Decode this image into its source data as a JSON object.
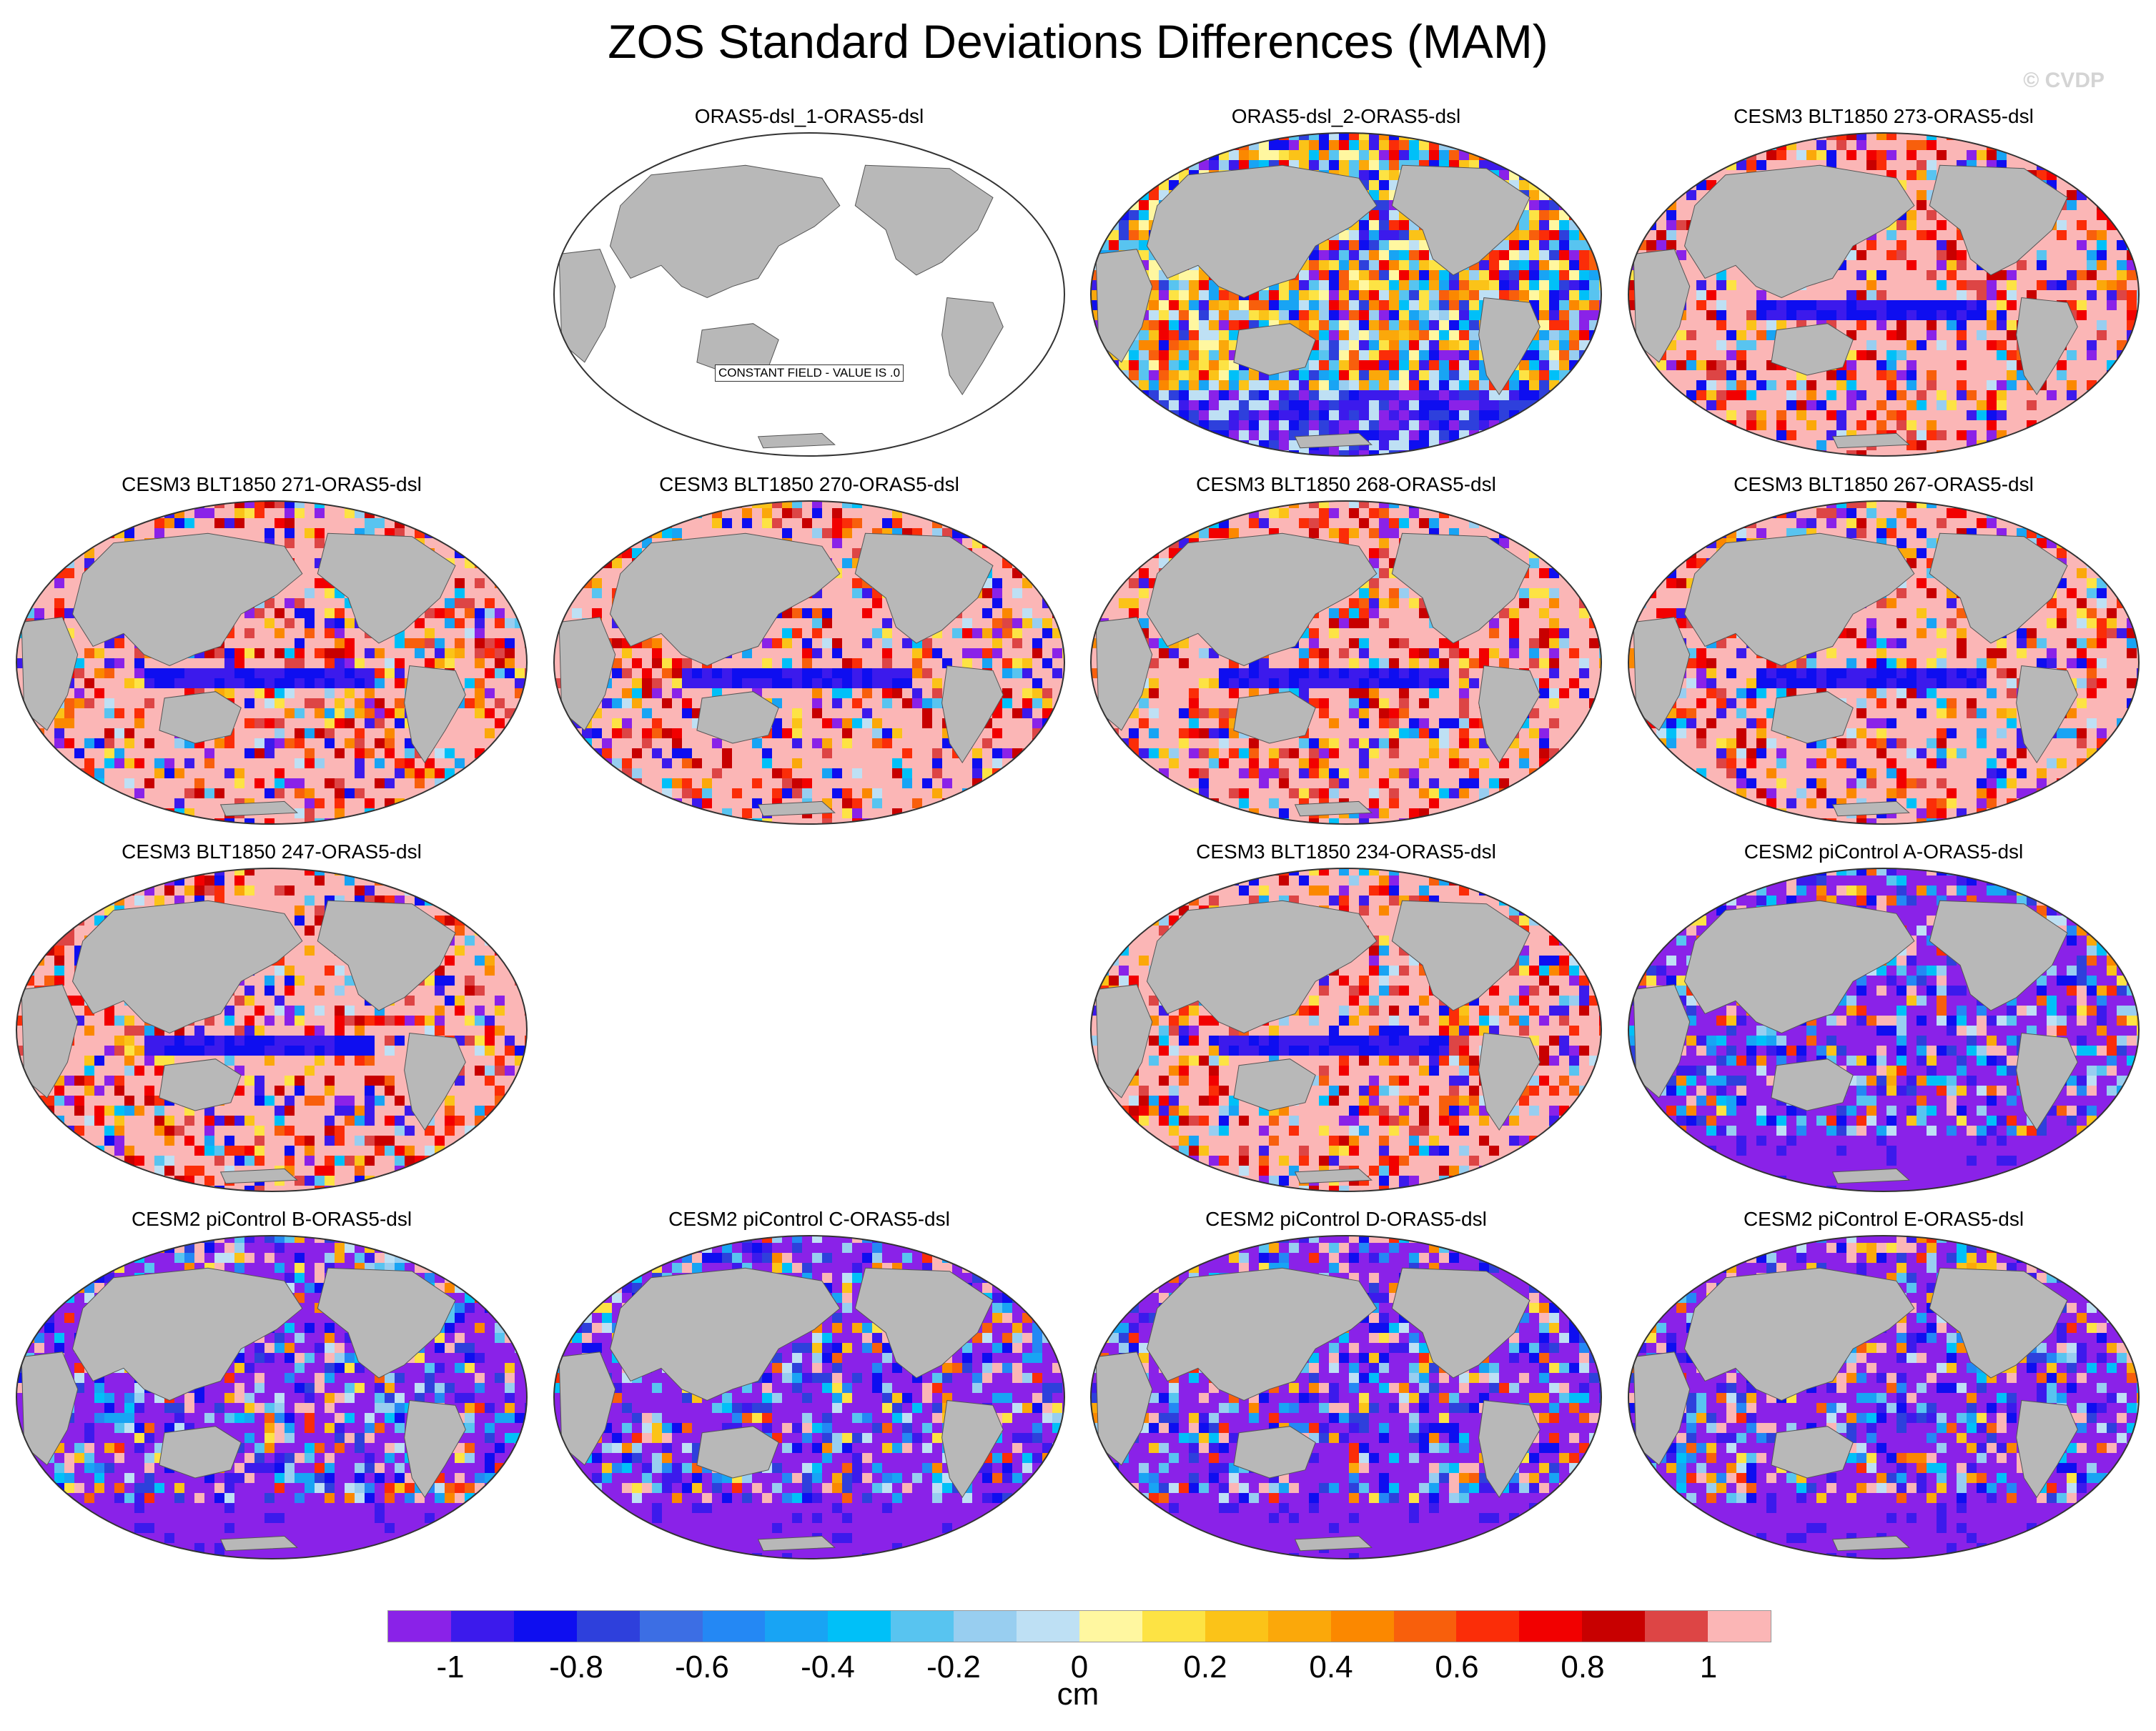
{
  "figure": {
    "title": "ZOS Standard Deviations Differences (MAM)",
    "watermark": "© CVDP"
  },
  "colors": {
    "land": "#b8b8b8",
    "constant_field": "#ffffff",
    "outline": "#333333"
  },
  "panels": [
    {
      "title": "ORAS5-dsl_1-ORAS5-dsl",
      "row": 0,
      "col": 1,
      "style": "constant",
      "constant_label": "CONSTANT FIELD - VALUE IS .0"
    },
    {
      "title": "ORAS5-dsl_2-ORAS5-dsl",
      "row": 0,
      "col": 2,
      "style": "mixed"
    },
    {
      "title": "CESM3 BLT1850 273-ORAS5-dsl",
      "row": 0,
      "col": 3,
      "style": "pink"
    },
    {
      "title": "CESM3 BLT1850 271-ORAS5-dsl",
      "row": 1,
      "col": 0,
      "style": "pink"
    },
    {
      "title": "CESM3 BLT1850 270-ORAS5-dsl",
      "row": 1,
      "col": 1,
      "style": "pink"
    },
    {
      "title": "CESM3 BLT1850 268-ORAS5-dsl",
      "row": 1,
      "col": 2,
      "style": "pink"
    },
    {
      "title": "CESM3 BLT1850 267-ORAS5-dsl",
      "row": 1,
      "col": 3,
      "style": "pink"
    },
    {
      "title": "CESM3 BLT1850 247-ORAS5-dsl",
      "row": 2,
      "col": 0,
      "style": "pink"
    },
    {
      "title": "CESM3 BLT1850 234-ORAS5-dsl",
      "row": 2,
      "col": 2,
      "style": "pink"
    },
    {
      "title": "CESM2 piControl A-ORAS5-dsl",
      "row": 2,
      "col": 3,
      "style": "purple"
    },
    {
      "title": "CESM2 piControl B-ORAS5-dsl",
      "row": 3,
      "col": 0,
      "style": "purple"
    },
    {
      "title": "CESM2 piControl C-ORAS5-dsl",
      "row": 3,
      "col": 1,
      "style": "purple"
    },
    {
      "title": "CESM2 piControl D-ORAS5-dsl",
      "row": 3,
      "col": 2,
      "style": "purple"
    },
    {
      "title": "CESM2 piControl E-ORAS5-dsl",
      "row": 3,
      "col": 3,
      "style": "purple"
    }
  ],
  "colorbar": {
    "units": "cm",
    "tick_labels": [
      "-1",
      "-0.8",
      "-0.6",
      "-0.4",
      "-0.2",
      "0",
      "0.2",
      "0.4",
      "0.6",
      "0.8",
      "1"
    ],
    "colors": [
      "#8a22e8",
      "#3c1aec",
      "#0e0ef0",
      "#2e40dc",
      "#3c6ee4",
      "#2488f4",
      "#18a4f4",
      "#00c0f8",
      "#58c4f0",
      "#98cef0",
      "#bee0f4",
      "#fff7a0",
      "#fde344",
      "#fbc318",
      "#fba80a",
      "#fb8800",
      "#f85f0c",
      "#fb2d08",
      "#f20000",
      "#c80000",
      "#dd4545",
      "#fbb6b6"
    ]
  }
}
